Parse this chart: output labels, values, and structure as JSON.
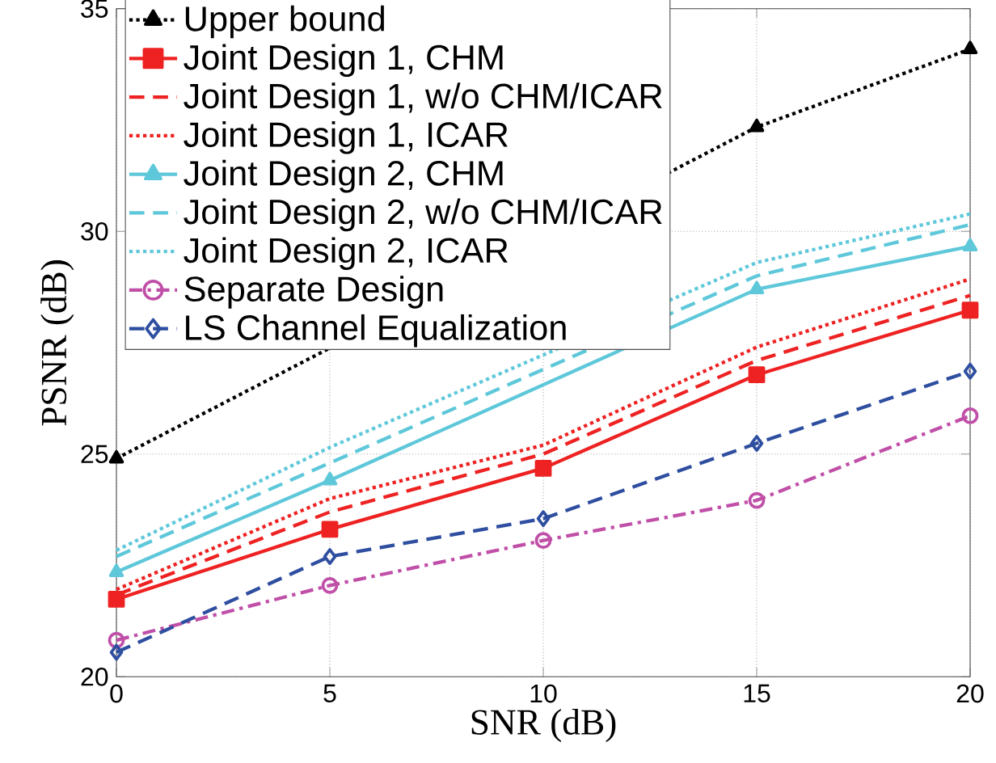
{
  "chart_data": {
    "type": "line",
    "xlabel": "SNR (dB)",
    "ylabel": "PSNR (dB)",
    "x": [
      0,
      5,
      10,
      15,
      20
    ],
    "xlim": [
      0,
      20
    ],
    "xticks": [
      0,
      5,
      10,
      15,
      20
    ],
    "ylim": [
      20,
      35
    ],
    "yticks": [
      20,
      25,
      30,
      35
    ],
    "grid": true,
    "legend": "top left",
    "series": [
      {
        "name": "Upper bound",
        "color": "#000000",
        "marker": "triangle",
        "line_style": "dotted",
        "values": [
          24.9,
          null,
          null,
          32.34,
          34.09
        ]
      },
      {
        "name": "Joint Design 1, CHM",
        "color": "#ee2222",
        "marker": "square",
        "line_style": "solid",
        "values": [
          21.74,
          23.31,
          24.68,
          26.78,
          28.23
        ]
      },
      {
        "name": "Joint Design 1, w/o CHM/ICAR",
        "color": "#ee2222",
        "marker": "none",
        "line_style": "dashed",
        "values": [
          21.84,
          23.7,
          25.0,
          27.1,
          28.56
        ]
      },
      {
        "name": "Joint Design 1, ICAR",
        "color": "#ee2222",
        "marker": "none",
        "line_style": "dotted",
        "values": [
          21.96,
          24.0,
          25.2,
          27.4,
          28.93
        ]
      },
      {
        "name": "Joint Design 2, CHM",
        "color": "#5ec8da",
        "marker": "triangle",
        "line_style": "solid",
        "values": [
          22.35,
          24.41,
          null,
          28.7,
          29.66
        ]
      },
      {
        "name": "Joint Design 2, w/o CHM/ICAR",
        "color": "#5ec8da",
        "marker": "none",
        "line_style": "dashed",
        "values": [
          22.7,
          24.8,
          null,
          29.0,
          30.15
        ]
      },
      {
        "name": "Joint Design 2, ICAR",
        "color": "#5ec8da",
        "marker": "none",
        "line_style": "dotted",
        "values": [
          22.84,
          25.15,
          null,
          29.3,
          30.39
        ]
      },
      {
        "name": "Separate Design",
        "color": "#c04fa8",
        "marker": "circle",
        "line_style": "dashdot",
        "values": [
          20.82,
          22.05,
          23.06,
          23.96,
          25.86
        ]
      },
      {
        "name": "LS Channel Equalization",
        "color": "#2e4ea0",
        "marker": "diamond",
        "line_style": "dashed",
        "values": [
          20.55,
          22.7,
          23.55,
          25.24,
          26.86
        ]
      }
    ]
  }
}
